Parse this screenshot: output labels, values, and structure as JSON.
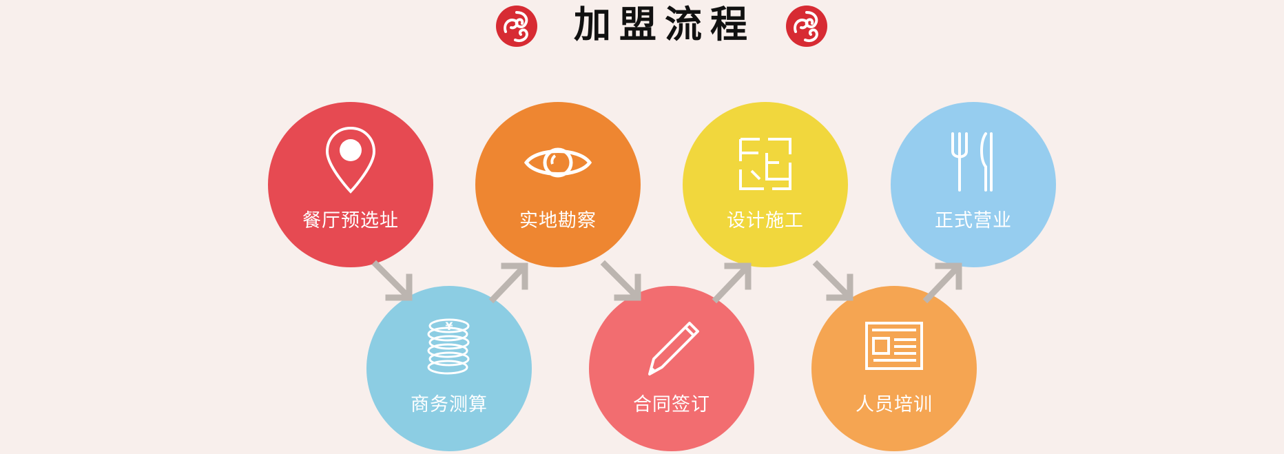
{
  "header": {
    "title": "加盟流程",
    "logo_icon": "red-swirl-logo-icon"
  },
  "colors": {
    "background": "#f8efec",
    "red": "#e64a52",
    "orange": "#ee8631",
    "yellow": "#f1d73d",
    "light_blue": "#96cdef",
    "teal": "#8ccde3",
    "pink": "#f26d70",
    "light_orange": "#f5a552",
    "arrow": "#bcb5b0"
  },
  "steps": [
    {
      "label": "餐厅预选址",
      "icon": "location-pin-icon",
      "color": "#e64a52"
    },
    {
      "label": "商务测算",
      "icon": "coin-stack-icon",
      "color": "#8ccde3"
    },
    {
      "label": "实地勘察",
      "icon": "eye-icon",
      "color": "#ee8631"
    },
    {
      "label": "合同签订",
      "icon": "pen-icon",
      "color": "#f26d70"
    },
    {
      "label": "设计施工",
      "icon": "floor-plan-icon",
      "color": "#f1d73d"
    },
    {
      "label": "人员培训",
      "icon": "newspaper-icon",
      "color": "#f5a552"
    },
    {
      "label": "正式营业",
      "icon": "fork-knife-icon",
      "color": "#96cdef"
    }
  ]
}
